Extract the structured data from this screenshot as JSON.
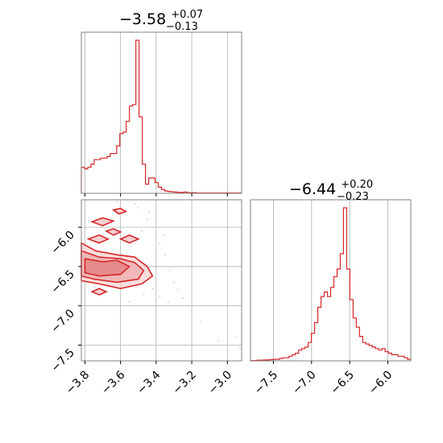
{
  "chart_data": [
    {
      "type": "histogram",
      "panel": "marginal-param1",
      "title": {
        "value": "−3.58",
        "plus": "+0.07",
        "minus": "−0.13"
      },
      "xlim": [
        -3.82,
        -2.92
      ],
      "grid": true,
      "color": "#d62728",
      "bin_width": 0.018,
      "bin_start": -3.82,
      "heights": [
        0.17,
        0.16,
        0.17,
        0.19,
        0.22,
        0.22,
        0.23,
        0.23,
        0.24,
        0.26,
        0.26,
        0.31,
        0.39,
        0.4,
        0.47,
        0.57,
        0.58,
        1.0,
        0.5,
        0.19,
        0.06,
        0.1,
        0.1,
        0.07,
        0.04,
        0.025,
        0.015,
        0.012,
        0.01,
        0.008,
        0.006,
        0.006,
        0.008,
        0.004,
        0.004,
        0.004,
        0.002,
        0.002,
        0.002,
        0.002,
        0.002,
        0.002,
        0.002,
        0.002,
        0.002,
        0.002,
        0.002,
        0.002,
        0.002,
        0.002
      ]
    },
    {
      "type": "histogram",
      "panel": "marginal-param2",
      "title": {
        "value": "−6.44",
        "plus": "+0.20",
        "minus": "−0.23"
      },
      "xlim": [
        -7.8,
        -5.7
      ],
      "xticks": [
        -7.5,
        -7.0,
        -6.5,
        -6.0
      ],
      "xtick_labels": [
        "−7.5",
        "−7.0",
        "−6.5",
        "−6.0"
      ],
      "grid": true,
      "color": "#d62728",
      "bin_width": 0.042,
      "bin_start": -7.8,
      "heights": [
        0.002,
        0.002,
        0.004,
        0.004,
        0.006,
        0.006,
        0.008,
        0.01,
        0.01,
        0.015,
        0.02,
        0.02,
        0.03,
        0.04,
        0.05,
        0.07,
        0.08,
        0.09,
        0.12,
        0.18,
        0.25,
        0.35,
        0.42,
        0.45,
        0.42,
        0.48,
        0.55,
        0.6,
        0.7,
        1.0,
        0.6,
        0.4,
        0.28,
        0.22,
        0.16,
        0.12,
        0.11,
        0.1,
        0.09,
        0.08,
        0.07,
        0.08,
        0.06,
        0.05,
        0.04,
        0.04,
        0.03,
        0.03,
        0.02,
        0.01
      ]
    },
    {
      "type": "contour",
      "panel": "joint-param1-param2",
      "xlim": [
        -3.82,
        -2.92
      ],
      "ylim": [
        -7.7,
        -5.65
      ],
      "xticks": [
        -3.8,
        -3.6,
        -3.4,
        -3.2,
        -3.0
      ],
      "xtick_labels": [
        "−3.8",
        "−3.6",
        "−3.4",
        "−3.2",
        "−3.0"
      ],
      "yticks": [
        -6.0,
        -6.5,
        -7.0,
        -7.5
      ],
      "ytick_labels": [
        "−6.0",
        "−6.5",
        "−7.0",
        "−7.5"
      ],
      "grid": true,
      "color": "#d62728",
      "levels": [
        {
          "points": [
            [
              -3.82,
              -6.2
            ],
            [
              -3.74,
              -6.3
            ],
            [
              -3.62,
              -6.35
            ],
            [
              -3.52,
              -6.38
            ],
            [
              -3.45,
              -6.5
            ],
            [
              -3.42,
              -6.62
            ],
            [
              -3.48,
              -6.72
            ],
            [
              -3.6,
              -6.78
            ],
            [
              -3.72,
              -6.72
            ],
            [
              -3.82,
              -6.68
            ]
          ]
        },
        {
          "points": [
            [
              -3.82,
              -6.3
            ],
            [
              -3.72,
              -6.38
            ],
            [
              -3.6,
              -6.4
            ],
            [
              -3.52,
              -6.45
            ],
            [
              -3.47,
              -6.55
            ],
            [
              -3.5,
              -6.66
            ],
            [
              -3.62,
              -6.7
            ],
            [
              -3.75,
              -6.66
            ],
            [
              -3.82,
              -6.62
            ]
          ]
        },
        {
          "points": [
            [
              -3.8,
              -6.4
            ],
            [
              -3.7,
              -6.44
            ],
            [
              -3.62,
              -6.42
            ],
            [
              -3.55,
              -6.5
            ],
            [
              -3.6,
              -6.6
            ],
            [
              -3.72,
              -6.62
            ],
            [
              -3.8,
              -6.58
            ]
          ]
        }
      ],
      "islands": [
        {
          "points": [
            [
              -3.76,
              -5.93
            ],
            [
              -3.7,
              -5.88
            ],
            [
              -3.64,
              -5.92
            ],
            [
              -3.7,
              -5.98
            ]
          ]
        },
        {
          "points": [
            [
              -3.68,
              -6.05
            ],
            [
              -3.64,
              -6.02
            ],
            [
              -3.6,
              -6.06
            ],
            [
              -3.64,
              -6.1
            ]
          ]
        },
        {
          "points": [
            [
              -3.78,
              -6.15
            ],
            [
              -3.72,
              -6.1
            ],
            [
              -3.67,
              -6.15
            ],
            [
              -3.72,
              -6.2
            ]
          ]
        },
        {
          "points": [
            [
              -3.6,
              -6.15
            ],
            [
              -3.55,
              -6.1
            ],
            [
              -3.5,
              -6.15
            ],
            [
              -3.55,
              -6.2
            ]
          ]
        },
        {
          "points": [
            [
              -3.76,
              -6.82
            ],
            [
              -3.72,
              -6.78
            ],
            [
              -3.68,
              -6.82
            ],
            [
              -3.72,
              -6.86
            ]
          ]
        },
        {
          "points": [
            [
              -3.64,
              -5.78
            ],
            [
              -3.6,
              -5.76
            ],
            [
              -3.57,
              -5.8
            ],
            [
              -3.61,
              -5.83
            ]
          ]
        }
      ],
      "samples": [
        [
          -3.5,
          -5.75
        ],
        [
          -3.45,
          -5.9
        ],
        [
          -3.42,
          -6.0
        ],
        [
          -3.38,
          -6.2
        ],
        [
          -3.35,
          -6.35
        ],
        [
          -3.32,
          -6.55
        ],
        [
          -3.3,
          -6.7
        ],
        [
          -3.28,
          -6.8
        ],
        [
          -3.25,
          -6.9
        ],
        [
          -3.22,
          -7.0
        ],
        [
          -3.2,
          -7.05
        ],
        [
          -3.4,
          -7.1
        ],
        [
          -3.5,
          -7.0
        ],
        [
          -3.55,
          -6.95
        ],
        [
          -3.47,
          -6.85
        ],
        [
          -3.36,
          -6.1
        ],
        [
          -3.44,
          -5.8
        ],
        [
          -3.52,
          -5.7
        ],
        [
          -3.48,
          -6.05
        ],
        [
          -3.4,
          -6.4
        ],
        [
          -2.95,
          -7.4
        ],
        [
          -2.93,
          -7.55
        ],
        [
          -3.05,
          -7.45
        ],
        [
          -3.15,
          -7.2
        ],
        [
          -3.28,
          -7.0
        ],
        [
          -3.33,
          -6.95
        ],
        [
          -3.6,
          -5.7
        ],
        [
          -3.62,
          -5.68
        ],
        [
          -3.42,
          -6.78
        ],
        [
          -3.38,
          -6.88
        ]
      ]
    }
  ]
}
